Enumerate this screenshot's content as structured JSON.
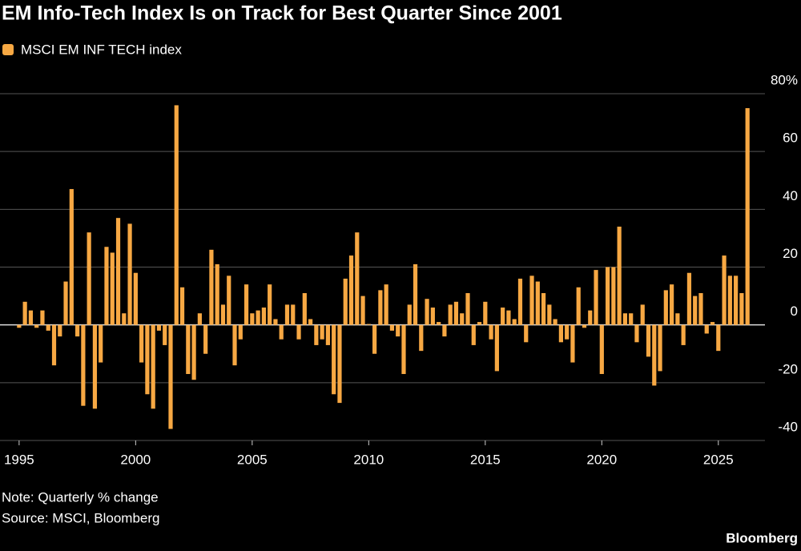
{
  "chart_data": {
    "type": "bar",
    "title": "EM Info-Tech Index Is on Track for Best Quarter Since 2001",
    "note": "Note: Quarterly % change",
    "source": "Source: MSCI, Bloomberg",
    "brand": "Bloomberg",
    "x": [
      1995,
      1995.25,
      1995.5,
      1995.75,
      1996,
      1996.25,
      1996.5,
      1996.75,
      1997,
      1997.25,
      1997.5,
      1997.75,
      1998,
      1998.25,
      1998.5,
      1998.75,
      1999,
      1999.25,
      1999.5,
      1999.75,
      2000,
      2000.25,
      2000.5,
      2000.75,
      2001,
      2001.25,
      2001.5,
      2001.75,
      2002,
      2002.25,
      2002.5,
      2002.75,
      2003,
      2003.25,
      2003.5,
      2003.75,
      2004,
      2004.25,
      2004.5,
      2004.75,
      2005,
      2005.25,
      2005.5,
      2005.75,
      2006,
      2006.25,
      2006.5,
      2006.75,
      2007,
      2007.25,
      2007.5,
      2007.75,
      2008,
      2008.25,
      2008.5,
      2008.75,
      2009,
      2009.25,
      2009.5,
      2009.75,
      2010,
      2010.25,
      2010.5,
      2010.75,
      2011,
      2011.25,
      2011.5,
      2011.75,
      2012,
      2012.25,
      2012.5,
      2012.75,
      2013,
      2013.25,
      2013.5,
      2013.75,
      2014,
      2014.25,
      2014.5,
      2014.75,
      2015,
      2015.25,
      2015.5,
      2015.75,
      2016,
      2016.25,
      2016.5,
      2016.75,
      2017,
      2017.25,
      2017.5,
      2017.75,
      2018,
      2018.25,
      2018.5,
      2018.75,
      2019,
      2019.25,
      2019.5,
      2019.75,
      2020,
      2020.25,
      2020.5,
      2020.75,
      2021,
      2021.25,
      2021.5,
      2021.75,
      2022,
      2022.25,
      2022.5,
      2022.75,
      2023,
      2023.25,
      2023.5,
      2023.75,
      2024,
      2024.25,
      2024.5,
      2024.75,
      2025,
      2025.25,
      2025.5,
      2025.75,
      2026,
      2026.25
    ],
    "series": [
      {
        "name": "MSCI EM INF TECH index",
        "color": "#f7a843",
        "values": [
          -1,
          8,
          5,
          -1,
          5,
          -2,
          -14,
          -4,
          15,
          47,
          -4,
          -28,
          32,
          -29,
          -13,
          27,
          25,
          37,
          4,
          35,
          18,
          -13,
          -24,
          -29,
          -2,
          -7,
          -36,
          76,
          13,
          -17,
          -19,
          4,
          -10,
          26,
          21,
          7,
          17,
          -14,
          -5,
          14,
          4,
          5,
          6,
          14,
          2,
          -5,
          7,
          7,
          -5,
          11,
          2,
          -7,
          -5,
          -7,
          -24,
          -27,
          16,
          24,
          32,
          10,
          0.3,
          -10,
          12,
          14,
          -2,
          -4,
          -17,
          7,
          21,
          -9,
          9,
          6,
          1,
          -4,
          7,
          8,
          4,
          11,
          -7,
          1,
          8,
          -5,
          -16,
          6,
          5,
          2,
          16,
          -6,
          17,
          15,
          11,
          7,
          2,
          -6,
          -5,
          -13,
          13,
          -1,
          5,
          19,
          -17,
          20,
          20,
          34,
          4,
          4,
          -6,
          7,
          -11,
          -21,
          -16,
          12,
          14,
          4,
          -7,
          18,
          10,
          11,
          -3,
          1,
          -9,
          24,
          17,
          17,
          11,
          75
        ]
      }
    ],
    "xlim": [
      1994.18,
      2027.0
    ],
    "xticks": [
      1995,
      2000,
      2005,
      2010,
      2015,
      2020,
      2025
    ],
    "ylim": [
      -40,
      80
    ],
    "yticks": [
      -40,
      -20,
      0,
      20,
      40,
      60,
      {
        "value": 80,
        "label": "80%"
      }
    ],
    "grid": true
  }
}
